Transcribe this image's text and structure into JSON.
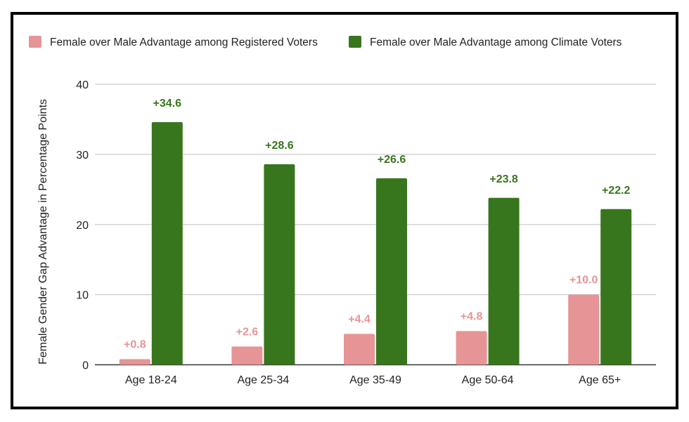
{
  "chart_data": {
    "type": "bar",
    "title": "",
    "xlabel": "",
    "ylabel": "Female Gender Gap Advantage in Percentage Points",
    "ylim": [
      0,
      40
    ],
    "yticks": [
      0,
      10,
      20,
      30,
      40
    ],
    "grid": true,
    "legend_position": "top",
    "categories": [
      "Age 18-24",
      "Age 25-34",
      "Age 35-49",
      "Age 50-64",
      "Age 65+"
    ],
    "series": [
      {
        "name": "Female over Male Advantage among Registered Voters",
        "color": "#e69496",
        "values": [
          0.8,
          2.6,
          4.4,
          4.8,
          10.0
        ],
        "labels": [
          "+0.8",
          "+2.6",
          "+4.4",
          "+4.8",
          "+10.0"
        ]
      },
      {
        "name": "Female over Male Advantage among Climate Voters",
        "color": "#38761d",
        "values": [
          34.6,
          28.6,
          26.6,
          23.8,
          22.2
        ],
        "labels": [
          "+34.6",
          "+28.6",
          "+26.6",
          "+23.8",
          "+22.2"
        ]
      }
    ]
  }
}
